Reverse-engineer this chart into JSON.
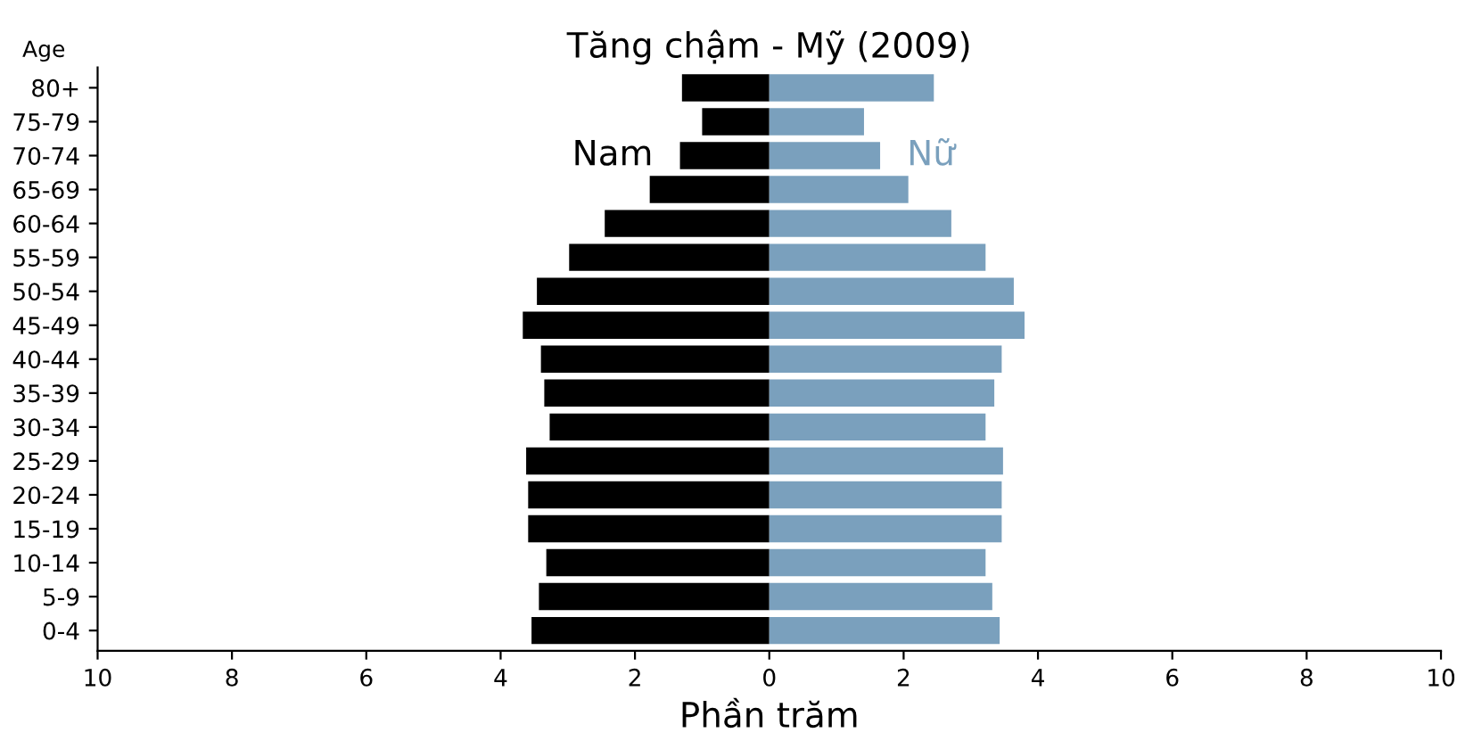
{
  "chart_data": {
    "type": "bar",
    "orientation": "horizontal",
    "title": "Tăng chậm - Mỹ (2009)",
    "xlabel": "Phần trăm",
    "ylabel": "Age",
    "categories": [
      "80+",
      "75-79",
      "70-74",
      "65-69",
      "60-64",
      "55-59",
      "50-54",
      "45-49",
      "40-44",
      "35-39",
      "30-34",
      "25-29",
      "20-24",
      "15-19",
      "10-14",
      "5-9",
      "0-4"
    ],
    "series": [
      {
        "name": "Nam",
        "color": "#000000",
        "values": [
          -1.3,
          -1.0,
          -1.33,
          -1.78,
          -2.45,
          -2.98,
          -3.46,
          -3.67,
          -3.4,
          -3.35,
          -3.27,
          -3.62,
          -3.59,
          -3.59,
          -3.32,
          -3.43,
          -3.54
        ]
      },
      {
        "name": "Nữ",
        "color": "#7aa0bd",
        "values": [
          2.45,
          1.41,
          1.65,
          2.07,
          2.71,
          3.22,
          3.64,
          3.8,
          3.46,
          3.35,
          3.22,
          3.48,
          3.46,
          3.46,
          3.22,
          3.32,
          3.43
        ]
      }
    ],
    "xlim": [
      -10,
      10
    ],
    "xticks": [
      {
        "value": -10,
        "label": "10"
      },
      {
        "value": -8,
        "label": "8"
      },
      {
        "value": -6,
        "label": "6"
      },
      {
        "value": -4,
        "label": "4"
      },
      {
        "value": -2,
        "label": "2"
      },
      0,
      2,
      4,
      6,
      8,
      10
    ],
    "stacked": true,
    "grid": false,
    "legend": false
  }
}
